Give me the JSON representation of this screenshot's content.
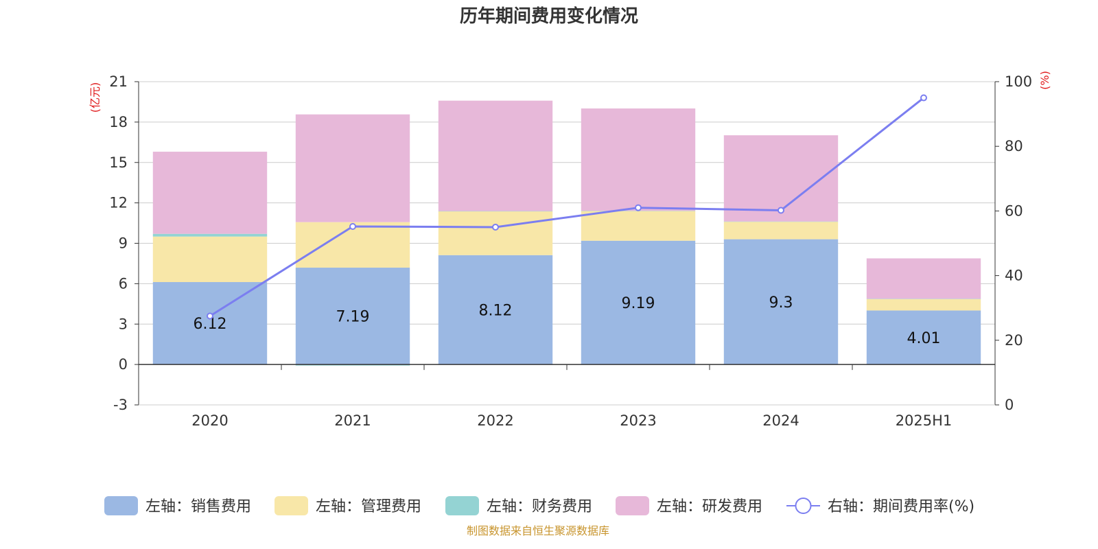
{
  "chart_data": {
    "type": "bar",
    "title": "历年期间费用变化情况",
    "categories": [
      "2020",
      "2021",
      "2022",
      "2023",
      "2024",
      "2025H1"
    ],
    "left_axis": {
      "unit": "(亿元)",
      "ylim": [
        -3,
        21
      ],
      "ticks": [
        -3,
        0,
        3,
        6,
        9,
        12,
        15,
        18,
        21
      ]
    },
    "right_axis": {
      "unit": "(%)",
      "ylim": [
        0,
        100
      ],
      "ticks": [
        0,
        20,
        40,
        60,
        80,
        100
      ]
    },
    "stacked": true,
    "series": [
      {
        "name": "左轴：销售费用",
        "axis": "left",
        "color": "#9bb8e3",
        "values": [
          6.12,
          7.19,
          8.12,
          9.19,
          9.3,
          4.01
        ],
        "data_labels": [
          "6.12",
          "7.19",
          "8.12",
          "9.19",
          "9.3",
          "4.01"
        ]
      },
      {
        "name": "左轴：管理费用",
        "axis": "left",
        "color": "#f8e7a8",
        "values": [
          3.38,
          3.38,
          3.25,
          2.21,
          1.3,
          0.85
        ]
      },
      {
        "name": "左轴：财务费用",
        "axis": "left",
        "color": "#94d3d3",
        "values": [
          0.2,
          -0.08,
          0.02,
          0.01,
          0.02,
          0.02
        ]
      },
      {
        "name": "左轴：研发费用",
        "axis": "left",
        "color": "#e7b8d9",
        "values": [
          6.1,
          8.0,
          8.2,
          7.6,
          6.4,
          3.0
        ]
      },
      {
        "name": "右轴：期间费用率(%)",
        "axis": "right",
        "type": "line",
        "color": "#7b7ef0",
        "values": [
          27.5,
          55.2,
          55.0,
          61.0,
          60.2,
          95.0
        ]
      }
    ],
    "grid": true,
    "legend": "bottom",
    "source": "制图数据来自恒生聚源数据库"
  }
}
